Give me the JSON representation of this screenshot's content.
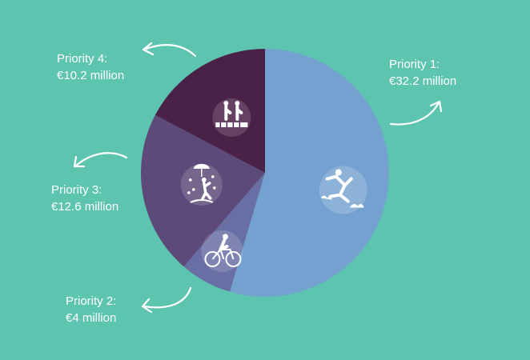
{
  "chart_data": {
    "type": "pie",
    "title": "",
    "unit": "€ million",
    "slices": [
      {
        "label": "Priority 1:",
        "value_text": "€32.2 million",
        "value": 32.2,
        "color": "#74a1d0",
        "icon": "jumping-person-icon"
      },
      {
        "label": "Priority 2:",
        "value_text": "€4 million",
        "value": 4,
        "color": "#696fa5",
        "icon": "cyclist-icon"
      },
      {
        "label": "Priority 3:",
        "value_text": "€12.6 million",
        "value": 12.6,
        "color": "#5e4a7a",
        "icon": "person-in-rain-icon"
      },
      {
        "label": "Priority 4:",
        "value_text": "€10.2 million",
        "value": 10.2,
        "color": "#4a2248",
        "icon": "people-on-bridge-icon"
      }
    ]
  },
  "colors": {
    "background": "#5dc4b0",
    "label_text": "#ffffff",
    "arrow": "#ffffff"
  }
}
